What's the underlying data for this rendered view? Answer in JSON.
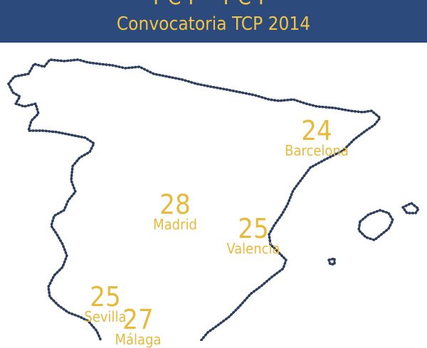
{
  "header": {
    "top_text_cropped": "TCP TCP",
    "subtitle": "Convocatoria TCP 2014"
  },
  "colors": {
    "banner": "#2d4a7c",
    "accent": "#f3c544",
    "label": "#e8b93a",
    "outline": "#2d3d5c"
  },
  "cities": [
    {
      "name": "Barcelona",
      "count": "24"
    },
    {
      "name": "Madrid",
      "count": "28"
    },
    {
      "name": "Valencia",
      "count": "25"
    },
    {
      "name": "Sevilla",
      "count": "25"
    },
    {
      "name": "Málaga",
      "count": "27"
    }
  ]
}
